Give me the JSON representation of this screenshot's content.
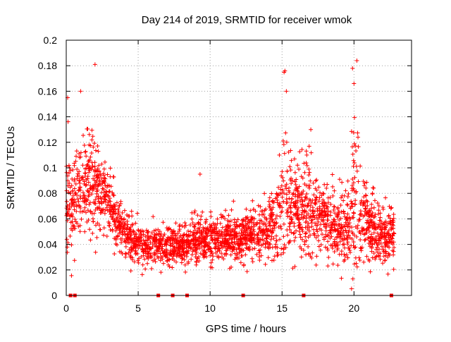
{
  "chart_data": {
    "type": "scatter",
    "title": "Day 214 of 2019, SRMTID for receiver wmok",
    "xlabel": "GPS time / hours",
    "ylabel": "SRMTID / TECUs",
    "xlim": [
      0,
      24
    ],
    "ylim": [
      0,
      0.2
    ],
    "grid": true,
    "marker": "+",
    "series_color": "#ff0000",
    "grid_color": "#a0a0a0",
    "x_ticks": [
      0,
      5,
      10,
      15,
      20
    ],
    "x_tick_labels": [
      "0",
      "5",
      "10",
      "15",
      "20"
    ],
    "y_ticks": [
      0,
      0.02,
      0.04,
      0.06,
      0.08,
      0.1,
      0.12,
      0.14,
      0.16,
      0.18,
      0.2
    ],
    "y_tick_labels": [
      "0",
      "0.02",
      "0.04",
      "0.06",
      "0.08",
      "0.1",
      "0.12",
      "0.14",
      "0.16",
      "0.18",
      "0.2"
    ],
    "baseline_markers_x": [
      0.3,
      0.6,
      6.4,
      7.4,
      8.4,
      12.3,
      16.5,
      22.6
    ],
    "profile_hours": [
      0,
      0.5,
      1,
      1.5,
      2,
      2.5,
      3,
      3.5,
      4,
      5,
      6,
      7,
      8,
      9,
      10,
      11,
      12,
      13,
      14,
      14.8,
      15.2,
      15.6,
      16,
      17,
      18,
      19,
      19.6,
      20,
      20.5,
      21,
      22,
      22.8
    ],
    "profile_median": [
      0.07,
      0.075,
      0.085,
      0.09,
      0.088,
      0.08,
      0.072,
      0.062,
      0.05,
      0.04,
      0.038,
      0.038,
      0.038,
      0.043,
      0.045,
      0.045,
      0.045,
      0.046,
      0.052,
      0.06,
      0.075,
      0.07,
      0.065,
      0.07,
      0.06,
      0.055,
      0.05,
      0.07,
      0.06,
      0.055,
      0.045,
      0.05
    ],
    "profile_spread": [
      0.03,
      0.03,
      0.025,
      0.025,
      0.025,
      0.022,
      0.018,
      0.015,
      0.012,
      0.01,
      0.01,
      0.01,
      0.01,
      0.012,
      0.012,
      0.012,
      0.012,
      0.012,
      0.015,
      0.02,
      0.04,
      0.025,
      0.02,
      0.025,
      0.018,
      0.018,
      0.02,
      0.045,
      0.025,
      0.018,
      0.015,
      0.015
    ],
    "peaks": [
      {
        "x": 0.1,
        "y": 0.155
      },
      {
        "x": 1.0,
        "y": 0.16
      },
      {
        "x": 2.0,
        "y": 0.181
      },
      {
        "x": 9.3,
        "y": 0.095
      },
      {
        "x": 15.2,
        "y": 0.176
      },
      {
        "x": 15.3,
        "y": 0.16
      },
      {
        "x": 17.0,
        "y": 0.13
      },
      {
        "x": 19.9,
        "y": 0.178
      },
      {
        "x": 20.2,
        "y": 0.184
      },
      {
        "x": 20.0,
        "y": 0.166
      }
    ],
    "point_count": 2600,
    "seed": 214
  }
}
